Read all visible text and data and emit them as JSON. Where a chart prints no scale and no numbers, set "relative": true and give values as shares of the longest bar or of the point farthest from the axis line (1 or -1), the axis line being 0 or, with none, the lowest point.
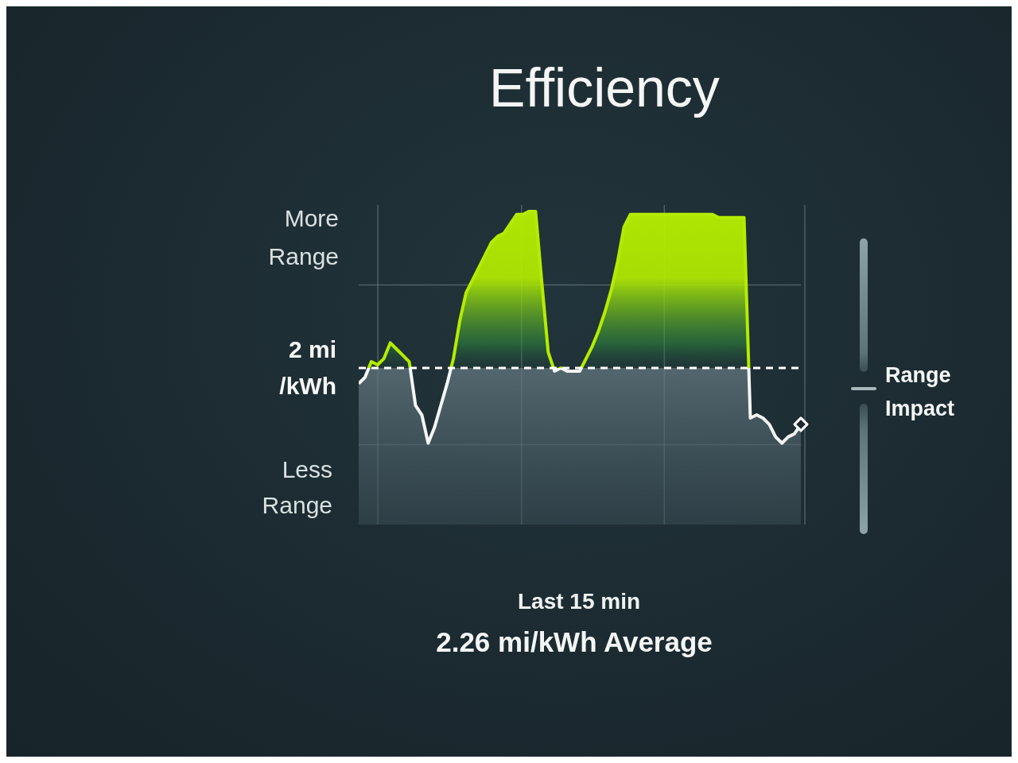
{
  "chart_data": {
    "type": "area",
    "title": "Efficiency",
    "xlabel": "Last 15 min",
    "annotations": [
      "More\nRange",
      "Less\nRange",
      "Range\nImpact",
      "2.26 mi/kWh Average"
    ],
    "categories": [
      null,
      null,
      null,
      null,
      null,
      null,
      null,
      null,
      null,
      null,
      null,
      null,
      null,
      null,
      null,
      null,
      null,
      null,
      null,
      null,
      null,
      null,
      null,
      null,
      null,
      null,
      null,
      null,
      null,
      null,
      null,
      null,
      null,
      null,
      null,
      null,
      null,
      null,
      null,
      null,
      null,
      null,
      null,
      null,
      null,
      null,
      null,
      null,
      null,
      null,
      null,
      null,
      null,
      null,
      null,
      null,
      null,
      null,
      null,
      null,
      null,
      null,
      null,
      null,
      null,
      null,
      null,
      null,
      null,
      null,
      null
    ],
    "relative": true,
    "series": [
      {
        "color": "#b4ec00",
        "values": [
          0.45,
          0.47,
          0.52,
          0.51,
          0.53,
          0.58,
          0.56,
          0.54,
          0.52,
          0.38,
          0.35,
          0.26,
          0.31,
          0.38,
          0.45,
          0.53,
          0.65,
          0.74,
          0.78,
          0.82,
          0.86,
          0.9,
          0.92,
          0.93,
          0.96,
          0.99,
          0.99,
          1.0,
          1.0,
          0.77,
          0.55,
          0.49,
          0.5,
          0.49,
          0.49,
          0.49,
          0.53,
          0.57,
          0.62,
          0.68,
          0.75,
          0.84,
          0.95,
          0.99,
          0.99,
          0.99,
          0.99,
          0.99,
          0.99,
          0.99,
          0.99,
          0.99,
          0.99,
          0.99,
          0.99,
          0.99,
          0.99,
          0.98,
          0.98,
          0.98,
          0.98,
          0.98,
          0.34,
          0.35,
          0.34,
          0.32,
          0.28,
          0.26,
          0.28,
          0.29,
          0.32
        ]
      },
      {
        "type": "line",
        "color": "#ffffff",
        "marker": "diamond",
        "values": [
          null,
          null,
          null,
          null,
          null,
          null,
          null,
          null,
          null,
          null,
          null,
          null,
          null,
          null,
          null,
          null,
          null,
          null,
          null,
          null,
          null,
          null,
          null,
          null,
          null,
          null,
          null,
          null,
          null,
          null,
          null,
          null,
          null,
          null,
          null,
          null,
          null,
          null,
          null,
          null,
          null,
          null,
          null,
          null,
          null,
          null,
          null,
          null,
          null,
          null,
          null,
          null,
          null,
          null,
          null,
          null,
          null,
          null,
          null,
          null,
          null,
          null,
          null,
          null,
          null,
          null,
          null,
          null,
          null,
          null,
          0.32
        ]
      }
    ],
    "ref_lines": [
      {
        "axis": "y",
        "value": 0.5,
        "label": "2 mi\n/kWh",
        "color": "#ffffff",
        "line_style": "dashed"
      }
    ],
    "grid": true
  }
}
